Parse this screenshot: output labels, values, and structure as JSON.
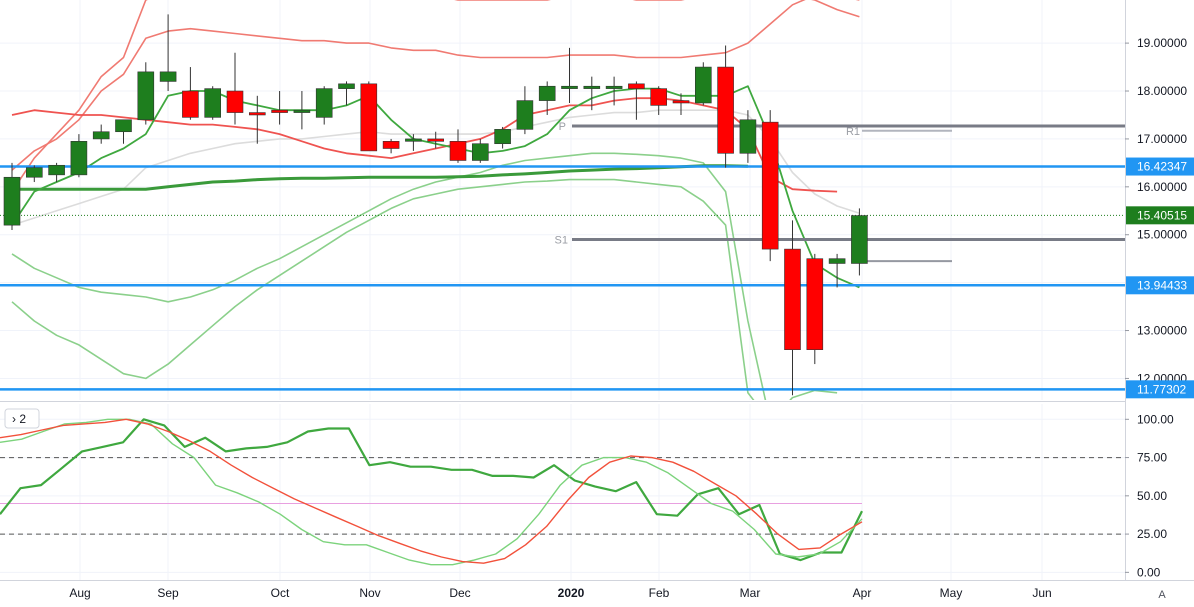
{
  "colors": {
    "up": "#1e7e1e",
    "down": "#ff0000",
    "grid": "#f0f3fa",
    "axis": "#9598a1",
    "blue_line": "#2196f3",
    "pivot_line": "#787b86",
    "bb_upper": "#f07a72",
    "bb_mid_gray": "#dcdcdc",
    "sma_green": "#3a9a3a",
    "light_green": "#8bd08b",
    "red_ma": "#ef5350",
    "stoch_green": "#3fa83f",
    "stoch_light_green": "#7cd37c",
    "stoch_red": "#f2513b",
    "level_dash": "#555555",
    "level_pink": "#e8a0e0",
    "tag_last": "#1e7e1e",
    "tag_blue": "#2196f3"
  },
  "ui": {
    "pane_toggle": "› 2",
    "corner_button": "A"
  },
  "chart_data": [
    {
      "type": "candlestick",
      "pane": "main",
      "ylim": [
        11.55,
        19.9
      ],
      "y_ticks": [
        "19.00000",
        "18.00000",
        "17.00000",
        "16.00000",
        "15.00000",
        "13.00000",
        "12.00000"
      ],
      "x_ticks": [
        "Aug",
        "Sep",
        "Oct",
        "Nov",
        "Dec",
        "2020",
        "Feb",
        "Mar",
        "Apr",
        "May",
        "Jun"
      ],
      "candles": [
        {
          "o": 15.2,
          "h": 16.5,
          "l": 15.1,
          "c": 16.2
        },
        {
          "o": 16.2,
          "h": 16.45,
          "l": 16.1,
          "c": 16.4
        },
        {
          "o": 16.25,
          "h": 16.5,
          "l": 16.1,
          "c": 16.45
        },
        {
          "o": 16.25,
          "h": 17.1,
          "l": 16.2,
          "c": 16.95
        },
        {
          "o": 17.0,
          "h": 17.3,
          "l": 16.9,
          "c": 17.15
        },
        {
          "o": 17.15,
          "h": 17.4,
          "l": 16.9,
          "c": 17.4
        },
        {
          "o": 17.4,
          "h": 18.6,
          "l": 17.3,
          "c": 18.4
        },
        {
          "o": 18.2,
          "h": 19.6,
          "l": 18.0,
          "c": 18.4
        },
        {
          "o": 18.0,
          "h": 18.5,
          "l": 17.4,
          "c": 17.45
        },
        {
          "o": 17.45,
          "h": 18.1,
          "l": 17.4,
          "c": 18.05
        },
        {
          "o": 18.0,
          "h": 18.8,
          "l": 17.3,
          "c": 17.55
        },
        {
          "o": 17.55,
          "h": 17.9,
          "l": 16.9,
          "c": 17.5
        },
        {
          "o": 17.6,
          "h": 18.0,
          "l": 17.3,
          "c": 17.55
        },
        {
          "o": 17.55,
          "h": 18.0,
          "l": 17.2,
          "c": 17.6
        },
        {
          "o": 17.45,
          "h": 18.1,
          "l": 17.3,
          "c": 18.05
        },
        {
          "o": 18.05,
          "h": 18.2,
          "l": 17.7,
          "c": 18.15
        },
        {
          "o": 18.15,
          "h": 18.2,
          "l": 16.8,
          "c": 16.75
        },
        {
          "o": 16.95,
          "h": 17.0,
          "l": 16.7,
          "c": 16.8
        },
        {
          "o": 16.95,
          "h": 17.1,
          "l": 16.75,
          "c": 17.0
        },
        {
          "o": 17.0,
          "h": 17.15,
          "l": 16.8,
          "c": 16.95
        },
        {
          "o": 16.95,
          "h": 17.2,
          "l": 16.5,
          "c": 16.55
        },
        {
          "o": 16.55,
          "h": 17.0,
          "l": 16.5,
          "c": 16.9
        },
        {
          "o": 16.9,
          "h": 17.25,
          "l": 16.8,
          "c": 17.2
        },
        {
          "o": 17.2,
          "h": 18.1,
          "l": 17.1,
          "c": 17.8
        },
        {
          "o": 17.8,
          "h": 18.2,
          "l": 17.5,
          "c": 18.1
        },
        {
          "o": 18.05,
          "h": 18.9,
          "l": 17.75,
          "c": 18.1
        },
        {
          "o": 18.05,
          "h": 18.3,
          "l": 17.6,
          "c": 18.1
        },
        {
          "o": 18.05,
          "h": 18.3,
          "l": 17.7,
          "c": 18.1
        },
        {
          "o": 18.15,
          "h": 18.2,
          "l": 17.4,
          "c": 18.05
        },
        {
          "o": 18.05,
          "h": 18.1,
          "l": 17.5,
          "c": 17.7
        },
        {
          "o": 17.8,
          "h": 17.95,
          "l": 17.5,
          "c": 17.75
        },
        {
          "o": 17.75,
          "h": 18.6,
          "l": 17.7,
          "c": 18.5
        },
        {
          "o": 18.5,
          "h": 18.95,
          "l": 16.4,
          "c": 16.7
        },
        {
          "o": 16.7,
          "h": 17.6,
          "l": 16.5,
          "c": 17.4
        },
        {
          "o": 17.35,
          "h": 17.6,
          "l": 14.45,
          "c": 14.7
        },
        {
          "o": 14.7,
          "h": 15.3,
          "l": 11.65,
          "c": 12.6
        },
        {
          "o": 14.5,
          "h": 14.6,
          "l": 12.3,
          "c": 12.6
        },
        {
          "o": 14.4,
          "h": 14.6,
          "l": 13.9,
          "c": 14.5
        },
        {
          "o": 14.4,
          "h": 15.55,
          "l": 14.15,
          "c": 15.4
        }
      ],
      "overlays": {
        "bb_upper_outer": [
          15.9,
          16.6,
          17.1,
          17.6,
          18.3,
          18.7,
          19.9,
          20.1,
          20.2,
          20.2,
          20.2,
          20.2,
          20.1,
          20.1,
          20.1,
          20.1,
          20.1,
          20.0,
          20.0,
          20.0,
          19.9,
          19.9,
          19.9,
          19.9,
          19.9,
          20.0,
          20.0,
          20.0,
          19.9,
          19.9,
          19.9,
          20.0,
          20.0,
          20.0,
          20.0,
          20.0,
          19.9,
          19.7,
          19.55
        ],
        "bb_upper_inner": [
          16.35,
          16.75,
          17.0,
          17.4,
          18.0,
          18.35,
          19.1,
          19.25,
          19.3,
          19.25,
          19.2,
          19.15,
          19.1,
          19.05,
          19.05,
          19.0,
          19.0,
          18.9,
          18.85,
          18.85,
          18.75,
          18.7,
          18.7,
          18.7,
          18.7,
          18.75,
          18.75,
          18.75,
          18.7,
          18.7,
          18.7,
          18.75,
          18.8,
          19.0,
          19.4,
          19.8,
          20.0,
          20.0,
          19.9
        ],
        "bb_middle": [
          15.2,
          15.35,
          15.5,
          15.65,
          15.8,
          15.95,
          16.4,
          16.55,
          16.7,
          16.8,
          16.9,
          16.95,
          17.0,
          17.0,
          17.05,
          17.1,
          17.15,
          17.1,
          17.1,
          17.1,
          17.1,
          17.1,
          17.15,
          17.25,
          17.35,
          17.45,
          17.5,
          17.55,
          17.55,
          17.6,
          17.6,
          17.6,
          17.6,
          17.5,
          17.0,
          16.3,
          15.85,
          15.6,
          15.45
        ],
        "sma_dark_green": [
          15.95,
          15.95,
          15.95,
          15.95,
          15.95,
          15.95,
          15.95,
          16.0,
          16.05,
          16.1,
          16.12,
          16.15,
          16.17,
          16.18,
          16.18,
          16.19,
          16.2,
          16.2,
          16.2,
          16.2,
          16.21,
          16.22,
          16.25,
          16.27,
          16.3,
          16.33,
          16.35,
          16.37,
          16.38,
          16.4,
          16.42,
          16.44,
          16.44,
          16.43
        ],
        "red_ma": [
          17.5,
          17.6,
          17.55,
          17.5,
          17.5,
          17.45,
          17.4,
          17.35,
          17.3,
          17.3,
          17.25,
          17.2,
          17.1,
          16.95,
          16.8,
          16.7,
          16.65,
          16.6,
          16.7,
          16.8,
          16.9,
          17.0,
          17.2,
          17.5,
          17.6,
          17.7,
          17.7,
          17.8,
          17.85,
          17.85,
          17.8,
          17.7,
          17.6,
          17.2,
          16.2,
          15.95,
          15.92,
          15.9
        ],
        "green_ma": [
          15.2,
          15.9,
          16.1,
          16.3,
          16.6,
          16.8,
          17.1,
          17.9,
          18.0,
          18.0,
          17.8,
          17.7,
          17.6,
          17.6,
          17.6,
          17.7,
          17.9,
          17.4,
          17.0,
          16.9,
          16.8,
          16.7,
          16.75,
          16.85,
          17.1,
          17.6,
          17.85,
          18.0,
          18.05,
          18.05,
          17.9,
          17.9,
          17.9,
          18.1,
          17.0,
          15.5,
          14.4,
          14.1,
          13.9
        ],
        "bb_lower_inner": [
          14.6,
          14.3,
          14.1,
          13.9,
          13.8,
          13.75,
          13.7,
          13.6,
          13.7,
          13.85,
          14.05,
          14.3,
          14.5,
          14.75,
          15.0,
          15.25,
          15.5,
          15.75,
          15.95,
          16.1,
          16.2,
          16.3,
          16.45,
          16.55,
          16.6,
          16.65,
          16.7,
          16.7,
          16.68,
          16.65,
          16.6,
          16.5,
          15.9,
          13.2,
          11.1,
          10.7,
          10.5,
          10.45
        ],
        "bb_lower_outer": [
          13.6,
          13.2,
          12.9,
          12.7,
          12.4,
          12.1,
          12.0,
          12.3,
          12.7,
          13.1,
          13.5,
          13.85,
          14.15,
          14.45,
          14.75,
          15.05,
          15.3,
          15.55,
          15.75,
          15.85,
          15.95,
          16.0,
          16.05,
          16.1,
          16.12,
          16.15,
          16.15,
          16.15,
          16.1,
          16.05,
          16.0,
          15.7,
          15.2,
          11.7,
          11.1,
          11.6,
          11.75,
          11.7
        ]
      },
      "horizontal_lines": [
        {
          "value": 16.42347,
          "label": "16.42347",
          "style": "blue"
        },
        {
          "value": 13.94433,
          "label": "13.94433",
          "style": "blue"
        },
        {
          "value": 11.77302,
          "label": "11.77302",
          "style": "blue"
        },
        {
          "value": 15.40515,
          "label": "15.40515",
          "style": "last-price"
        }
      ],
      "pivots": [
        {
          "name": "P",
          "value": 17.27
        },
        {
          "name": "S1",
          "value": 14.9
        },
        {
          "name": "R1",
          "value": 17.17
        }
      ],
      "pivot_extra_levels": [
        14.45
      ]
    },
    {
      "type": "line",
      "pane": "stochastic",
      "ylim": [
        -5,
        110
      ],
      "y_ticks": [
        "100.00",
        "75.00",
        "50.00",
        "25.00",
        "0.00"
      ],
      "levels": [
        75,
        45,
        25
      ],
      "series": [
        {
          "values": [
            38,
            55,
            57,
            68,
            79,
            82,
            85,
            100,
            96,
            82,
            88,
            79,
            81,
            82,
            85,
            92,
            94,
            94,
            70,
            72,
            69,
            69,
            67,
            67,
            63,
            63,
            62,
            70,
            60,
            56,
            53,
            59,
            38,
            37,
            51,
            55,
            38,
            44,
            12,
            8,
            13,
            13,
            40
          ]
        },
        {
          "values": [
            85,
            87,
            92,
            97,
            98,
            100,
            100,
            97,
            84,
            75,
            57,
            52,
            46,
            38,
            28,
            20,
            18,
            18,
            13,
            8,
            5,
            5,
            8,
            12,
            22,
            38,
            57,
            70,
            75,
            75,
            72,
            65,
            55,
            45,
            40,
            28,
            12,
            10,
            12,
            20,
            35
          ]
        },
        {
          "values": [
            88,
            90,
            93,
            96,
            97,
            98,
            100,
            97,
            92,
            86,
            79,
            70,
            62,
            55,
            48,
            42,
            36,
            30,
            24,
            19,
            14,
            10,
            7,
            6,
            9,
            18,
            30,
            47,
            62,
            72,
            76,
            75,
            72,
            66,
            58,
            50,
            38,
            25,
            15,
            16,
            25,
            33
          ]
        }
      ]
    }
  ]
}
